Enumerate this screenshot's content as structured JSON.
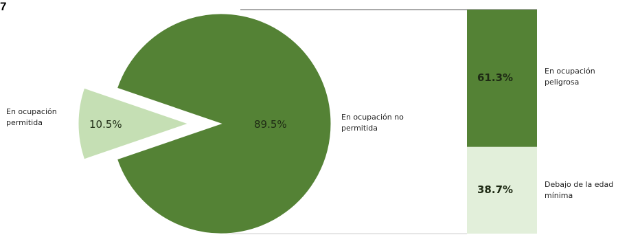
{
  "figure_number": "7",
  "chart_data": [
    {
      "type": "pie",
      "slices": [
        {
          "label": "En ocupación permitida",
          "value": 10.5,
          "value_label": "10.5%",
          "color": "#c5dfb4",
          "exploded": true
        },
        {
          "label": "En ocupación no permitida",
          "value": 89.5,
          "value_label": "89.5%",
          "color": "#548235",
          "exploded": false
        }
      ]
    },
    {
      "type": "bar",
      "stacked": true,
      "parent_slice": "En ocupación no permitida",
      "segments": [
        {
          "label": "En ocupación peligrosa",
          "value": 61.3,
          "value_label": "61.3%",
          "color": "#548235"
        },
        {
          "label": "Debajo de la edad mínima",
          "value": 38.7,
          "value_label": "38.7%",
          "color": "#e2efda"
        }
      ]
    }
  ]
}
